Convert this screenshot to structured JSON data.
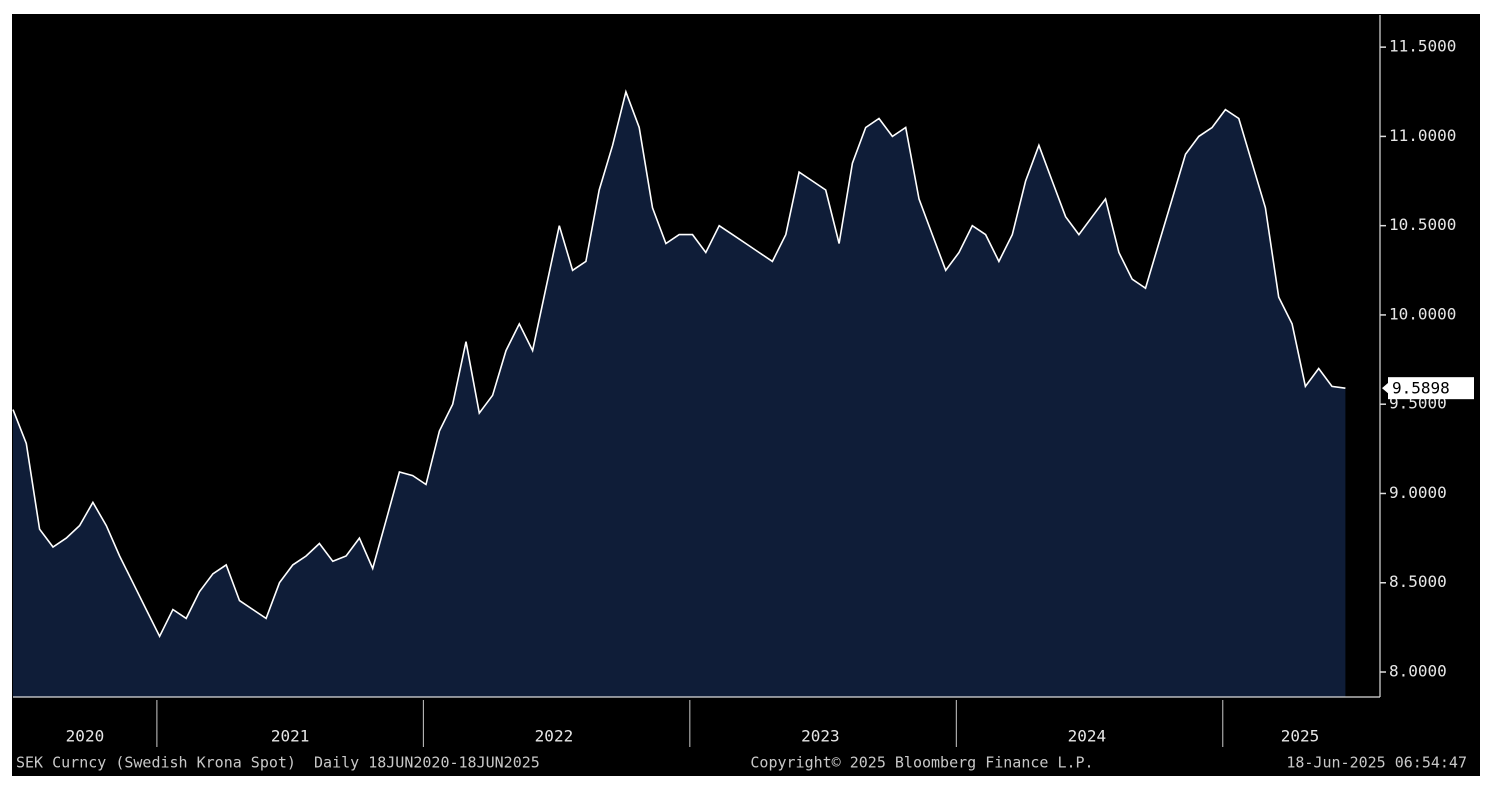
{
  "chart_data": {
    "type": "area",
    "x": [
      2020.46,
      2020.51,
      2020.56,
      2020.61,
      2020.66,
      2020.71,
      2020.76,
      2020.81,
      2020.86,
      2020.91,
      2020.96,
      2021.01,
      2021.06,
      2021.11,
      2021.16,
      2021.21,
      2021.26,
      2021.31,
      2021.36,
      2021.41,
      2021.46,
      2021.51,
      2021.56,
      2021.61,
      2021.66,
      2021.71,
      2021.76,
      2021.81,
      2021.86,
      2021.91,
      2021.96,
      2022.01,
      2022.06,
      2022.11,
      2022.16,
      2022.21,
      2022.26,
      2022.31,
      2022.36,
      2022.41,
      2022.46,
      2022.51,
      2022.56,
      2022.61,
      2022.66,
      2022.71,
      2022.76,
      2022.81,
      2022.86,
      2022.91,
      2022.96,
      2023.01,
      2023.06,
      2023.11,
      2023.16,
      2023.21,
      2023.26,
      2023.31,
      2023.36,
      2023.41,
      2023.46,
      2023.51,
      2023.56,
      2023.61,
      2023.66,
      2023.71,
      2023.76,
      2023.81,
      2023.86,
      2023.91,
      2023.96,
      2024.01,
      2024.06,
      2024.11,
      2024.16,
      2024.21,
      2024.26,
      2024.31,
      2024.36,
      2024.41,
      2024.46,
      2024.51,
      2024.56,
      2024.61,
      2024.66,
      2024.71,
      2024.76,
      2024.81,
      2024.86,
      2024.91,
      2024.96,
      2025.01,
      2025.06,
      2025.11,
      2025.16,
      2025.21,
      2025.26,
      2025.31,
      2025.36,
      2025.41,
      2025.46
    ],
    "series": [
      {
        "name": "SEK Curncy (Swedish Krona Spot)",
        "color": "#ffffff",
        "fill": "#0f1d38",
        "values": [
          9.47,
          9.28,
          8.8,
          8.7,
          8.75,
          8.82,
          8.95,
          8.82,
          8.65,
          8.5,
          8.35,
          8.2,
          8.35,
          8.3,
          8.45,
          8.55,
          8.6,
          8.4,
          8.35,
          8.3,
          8.5,
          8.6,
          8.65,
          8.72,
          8.62,
          8.65,
          8.75,
          8.58,
          8.85,
          9.12,
          9.1,
          9.05,
          9.35,
          9.5,
          9.85,
          9.45,
          9.55,
          9.8,
          9.95,
          9.8,
          10.15,
          10.5,
          10.25,
          10.3,
          10.7,
          10.95,
          11.25,
          11.05,
          10.6,
          10.4,
          10.45,
          10.45,
          10.35,
          10.5,
          10.45,
          10.4,
          10.35,
          10.3,
          10.45,
          10.8,
          10.75,
          10.7,
          10.4,
          10.85,
          11.05,
          11.1,
          11.0,
          11.05,
          10.65,
          10.45,
          10.25,
          10.35,
          10.5,
          10.45,
          10.3,
          10.45,
          10.75,
          10.95,
          10.75,
          10.55,
          10.45,
          10.55,
          10.65,
          10.35,
          10.2,
          10.15,
          10.4,
          10.65,
          10.9,
          11.0,
          11.05,
          11.15,
          11.1,
          10.85,
          10.6,
          10.1,
          9.95,
          9.6,
          9.7,
          9.6,
          9.5898
        ]
      }
    ],
    "last_value": 9.5898,
    "xlim": [
      2020.46,
      2025.59
    ],
    "ylim": [
      7.86,
      11.68
    ],
    "yticks": [
      {
        "value": 8.0,
        "label": "8.0000"
      },
      {
        "value": 8.5,
        "label": "8.5000"
      },
      {
        "value": 9.0,
        "label": "9.0000"
      },
      {
        "value": 9.5,
        "label": "9.5000"
      },
      {
        "value": 10.0,
        "label": "10.0000"
      },
      {
        "value": 10.5,
        "label": "10.5000"
      },
      {
        "value": 11.0,
        "label": "11.0000"
      },
      {
        "value": 11.5,
        "label": "11.5000"
      }
    ],
    "year_dividers": [
      2021,
      2022,
      2023,
      2024,
      2025
    ],
    "year_labels": [
      {
        "value": 2020.73,
        "label": "2020"
      },
      {
        "value": 2021.5,
        "label": "2021"
      },
      {
        "value": 2022.49,
        "label": "2022"
      },
      {
        "value": 2023.49,
        "label": "2023"
      },
      {
        "value": 2024.49,
        "label": "2024"
      },
      {
        "value": 2025.29,
        "label": "2025"
      }
    ],
    "footer_left": "SEK Curncy (Swedish Krona Spot)  Daily 18JUN2020-18JUN2025",
    "footer_center": "Copyright© 2025 Bloomberg Finance L.P.",
    "footer_right": "18-Jun-2025 06:54:47"
  }
}
